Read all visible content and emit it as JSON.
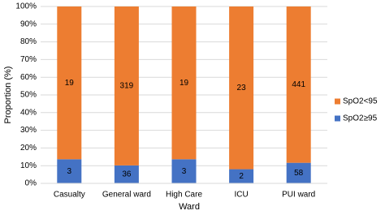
{
  "chart_data": {
    "type": "bar",
    "stacking": "percent",
    "x_label": "Ward",
    "y_label": "Proportion (%)",
    "categories": [
      "Casualty",
      "General ward",
      "High Care",
      "ICU",
      "PUI ward"
    ],
    "series": [
      {
        "name": "SpO2≥95",
        "color": "#4472c4",
        "values": [
          3,
          36,
          3,
          2,
          58
        ]
      },
      {
        "name": "SpO2<95",
        "color": "#ed7d31",
        "values": [
          19,
          319,
          19,
          23,
          441
        ]
      }
    ],
    "ylim": [
      0,
      100
    ],
    "yticks": [
      {
        "value": 0,
        "label": "0%"
      },
      {
        "value": 10,
        "label": "10%"
      },
      {
        "value": 20,
        "label": "20%"
      },
      {
        "value": 30,
        "label": "30%"
      },
      {
        "value": 40,
        "label": "40%"
      },
      {
        "value": 50,
        "label": "50%"
      },
      {
        "value": 60,
        "label": "60%"
      },
      {
        "value": 70,
        "label": "70%"
      },
      {
        "value": 80,
        "label": "80%"
      },
      {
        "value": 90,
        "label": "90%"
      },
      {
        "value": 100,
        "label": "100%"
      }
    ],
    "grid": true,
    "legend": "right"
  }
}
